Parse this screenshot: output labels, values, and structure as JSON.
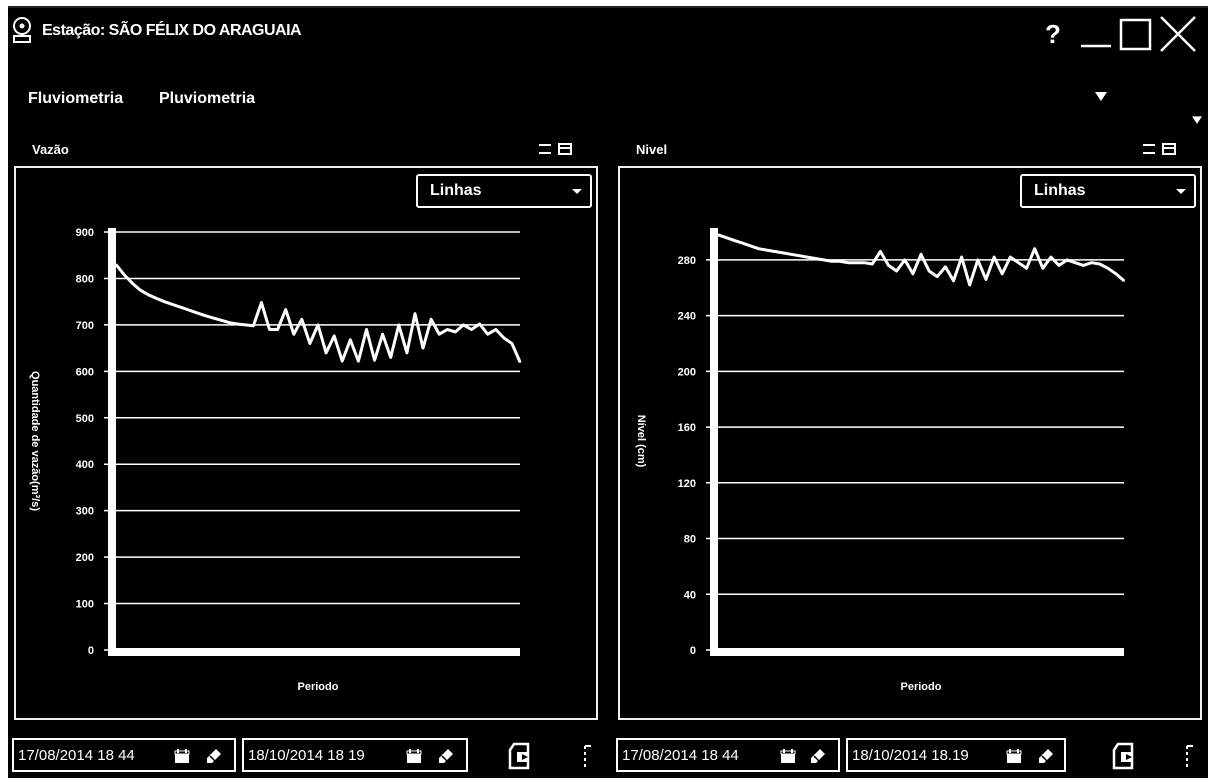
{
  "window": {
    "title": "Estação: SÃO FÉLIX DO ARAGUAIA",
    "help_label": "?",
    "icons": [
      "app-station-icon",
      "minimize-icon",
      "maximize-icon",
      "close-icon"
    ]
  },
  "menu": {
    "items": [
      {
        "label": "Fluviometria"
      },
      {
        "label": "Pluviometria"
      }
    ],
    "icons": [
      "caret-down-icon"
    ]
  },
  "panels": [
    {
      "title": "Vazão",
      "chart_type_selected": "Linhas",
      "start_date": "17/08/2014 18 44",
      "end_date": "18/10/2014 18 19",
      "icons": [
        "calendar-icon",
        "eraser-icon",
        "export-icon",
        "settings-icon",
        "collapse-icon",
        "restore-icon"
      ],
      "chart_data": {
        "type": "line",
        "title": "",
        "xlabel": "Periodo",
        "ylabel": "Quantidade de vazão(m³/s)",
        "ylim": [
          0,
          900
        ],
        "yticks": [
          "0",
          "100",
          "200",
          "300",
          "400",
          "500",
          "600",
          "700",
          "800",
          "900"
        ],
        "grid": true,
        "legend": "none",
        "series": [
          {
            "x": [
              0,
              2,
              4,
              6,
              8,
              10,
              12,
              14,
              16,
              18,
              20,
              22,
              24,
              26,
              28,
              30,
              32,
              34,
              36,
              38,
              40,
              42,
              44,
              46,
              48,
              50,
              52,
              54,
              56,
              58,
              60,
              62,
              64,
              66,
              68,
              70,
              72,
              74,
              76,
              78,
              80,
              82,
              84,
              86,
              88,
              90,
              92,
              94,
              96,
              98,
              100
            ],
            "values": [
              830,
              808,
              790,
              775,
              765,
              757,
              750,
              744,
              738,
              732,
              726,
              720,
              715,
              710,
              705,
              702,
              700,
              698,
              748,
              690,
              690,
              733,
              680,
              712,
              660,
              700,
              640,
              676,
              622,
              668,
              622,
              690,
              624,
              680,
              630,
              700,
              640,
              724,
              650,
              712,
              680,
              690,
              685,
              700,
              690,
              702,
              680,
              690,
              672,
              660,
              620
            ]
          }
        ]
      }
    },
    {
      "title": "Nivel",
      "chart_type_selected": "Linhas",
      "start_date": "17/08/2014 18 44",
      "end_date": "18/10/2014 18.19",
      "icons": [
        "calendar-icon",
        "eraser-icon",
        "export-icon",
        "settings-icon",
        "collapse-icon",
        "restore-icon"
      ],
      "chart_data": {
        "type": "line",
        "title": "",
        "xlabel": "Periodo",
        "ylabel": "Nível (cm)",
        "ylim": [
          0,
          300
        ],
        "yticks": [
          "0",
          "40",
          "80",
          "120",
          "160",
          "200",
          "240",
          "280"
        ],
        "grid": true,
        "legend": "none",
        "series": [
          {
            "x": [
              0,
              2,
              4,
              6,
              8,
              10,
              12,
              14,
              16,
              18,
              20,
              22,
              24,
              26,
              28,
              30,
              32,
              34,
              36,
              38,
              40,
              42,
              44,
              46,
              48,
              50,
              52,
              54,
              56,
              58,
              60,
              62,
              64,
              66,
              68,
              70,
              72,
              74,
              76,
              78,
              80,
              82,
              84,
              86,
              88,
              90,
              92,
              94,
              96,
              98,
              100
            ],
            "values": [
              298,
              296,
              294,
              292,
              290,
              288,
              287,
              286,
              285,
              284,
              283,
              282,
              281,
              280,
              279,
              279,
              278,
              278,
              278,
              277,
              286,
              276,
              272,
              280,
              270,
              284,
              272,
              268,
              275,
              265,
              282,
              262,
              280,
              266,
              282,
              270,
              282,
              278,
              274,
              288,
              274,
              282,
              276,
              280,
              278,
              276,
              278,
              277,
              274,
              270,
              265
            ]
          }
        ]
      }
    }
  ]
}
